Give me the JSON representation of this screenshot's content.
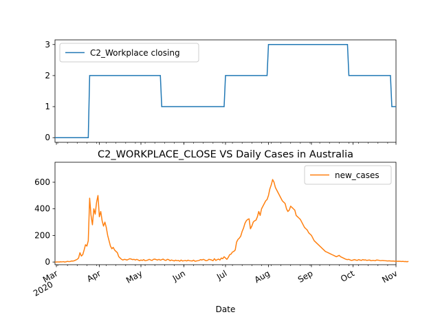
{
  "chart_data": [
    {
      "type": "line",
      "title": "",
      "xlabel": "",
      "ylabel": "",
      "x_range": [
        "2020-02-29",
        "2020-11-01"
      ],
      "ylim": [
        -0.15,
        3.15
      ],
      "yticks": [
        0,
        1,
        2,
        3
      ],
      "grid": false,
      "legend_position": "upper left",
      "series": [
        {
          "name": "C2_Workplace closing",
          "color": "#1f77b4",
          "step_points": [
            {
              "x": "2020-02-29",
              "y": 0
            },
            {
              "x": "2020-03-24",
              "y": 0
            },
            {
              "x": "2020-03-25",
              "y": 2
            },
            {
              "x": "2020-05-15",
              "y": 2
            },
            {
              "x": "2020-05-16",
              "y": 1
            },
            {
              "x": "2020-06-30",
              "y": 1
            },
            {
              "x": "2020-07-01",
              "y": 2
            },
            {
              "x": "2020-07-31",
              "y": 2
            },
            {
              "x": "2020-08-01",
              "y": 3
            },
            {
              "x": "2020-09-27",
              "y": 3
            },
            {
              "x": "2020-09-28",
              "y": 2
            },
            {
              "x": "2020-10-28",
              "y": 2
            },
            {
              "x": "2020-10-29",
              "y": 1
            },
            {
              "x": "2020-11-01",
              "y": 1
            }
          ]
        }
      ]
    },
    {
      "type": "line",
      "title": "C2_WORKPLACE_CLOSE VS Daily Cases in Australia",
      "xlabel": "Date",
      "ylabel": "",
      "x_range": [
        "2020-02-29",
        "2020-11-01"
      ],
      "ylim": [
        -20,
        750
      ],
      "yticks": [
        0,
        200,
        400,
        600
      ],
      "grid": false,
      "legend_position": "upper right",
      "x_tick_labels": [
        {
          "date": "2020-03-01",
          "label": "Mar",
          "sublabel": "2020"
        },
        {
          "date": "2020-04-01",
          "label": "Apr"
        },
        {
          "date": "2020-05-01",
          "label": "May"
        },
        {
          "date": "2020-06-01",
          "label": "Jun"
        },
        {
          "date": "2020-07-01",
          "label": "Jul"
        },
        {
          "date": "2020-08-01",
          "label": "Aug"
        },
        {
          "date": "2020-09-01",
          "label": "Sep"
        },
        {
          "date": "2020-10-01",
          "label": "Oct"
        },
        {
          "date": "2020-11-01",
          "label": "Nov"
        }
      ],
      "series": [
        {
          "name": "new_cases",
          "color": "#ff7f0e",
          "start_date": "2020-02-29",
          "values": [
            0,
            0,
            1,
            0,
            2,
            1,
            3,
            0,
            2,
            5,
            3,
            4,
            8,
            7,
            10,
            15,
            20,
            30,
            70,
            45,
            55,
            90,
            130,
            120,
            160,
            480,
            350,
            280,
            400,
            360,
            450,
            500,
            340,
            380,
            310,
            270,
            300,
            260,
            200,
            160,
            120,
            100,
            110,
            90,
            80,
            70,
            40,
            30,
            20,
            15,
            20,
            18,
            15,
            20,
            25,
            22,
            18,
            20,
            15,
            20,
            15,
            10,
            15,
            12,
            18,
            10,
            12,
            15,
            20,
            15,
            12,
            20,
            22,
            18,
            15,
            20,
            14,
            18,
            22,
            15,
            12,
            20,
            18,
            10,
            15,
            12,
            8,
            14,
            10,
            12,
            6,
            15,
            8,
            10,
            12,
            8,
            14,
            10,
            9,
            8,
            14,
            6,
            8,
            10,
            12,
            18,
            15,
            20,
            15,
            10,
            12,
            20,
            18,
            15,
            10,
            25,
            12,
            18,
            22,
            15,
            30,
            25,
            40,
            30,
            20,
            35,
            55,
            60,
            75,
            80,
            90,
            150,
            170,
            180,
            195,
            230,
            255,
            290,
            310,
            320,
            325,
            250,
            270,
            300,
            310,
            315,
            340,
            380,
            350,
            400,
            420,
            440,
            460,
            470,
            500,
            550,
            580,
            620,
            600,
            560,
            540,
            520,
            500,
            480,
            460,
            450,
            440,
            400,
            380,
            390,
            420,
            410,
            400,
            390,
            350,
            340,
            330,
            320,
            300,
            280,
            260,
            250,
            240,
            220,
            210,
            200,
            180,
            160,
            150,
            140,
            130,
            120,
            110,
            100,
            90,
            80,
            75,
            70,
            65,
            60,
            55,
            50,
            45,
            40,
            45,
            50,
            40,
            35,
            30,
            25,
            20,
            18,
            20,
            15,
            12,
            15,
            18,
            15,
            12,
            18,
            15,
            12,
            18,
            15,
            16,
            12,
            14,
            15,
            10,
            12,
            12,
            10,
            15,
            14,
            12,
            10,
            12,
            11,
            10,
            9,
            8,
            9,
            8,
            7,
            8,
            6,
            7,
            5,
            6,
            5,
            4,
            5,
            3,
            4,
            2,
            5
          ]
        }
      ]
    }
  ]
}
